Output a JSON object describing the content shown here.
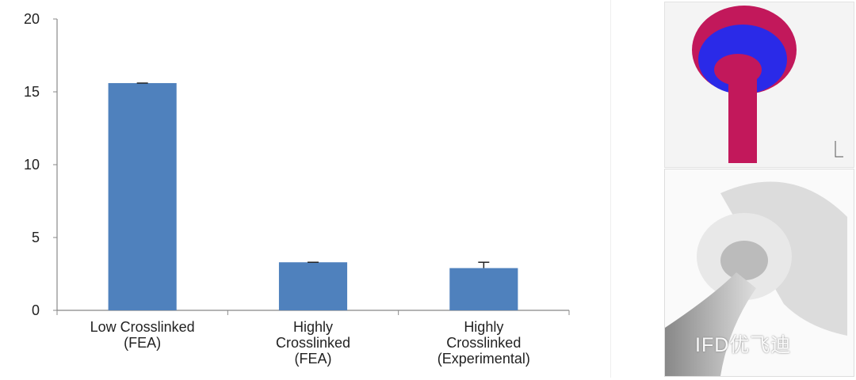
{
  "chart_data": {
    "type": "bar",
    "title": "",
    "xlabel": "",
    "ylabel": "",
    "ylim": [
      0,
      20
    ],
    "yticks": [
      0,
      5,
      10,
      15,
      20
    ],
    "categories": [
      [
        "Low Crosslinked",
        "(FEA)"
      ],
      [
        "Highly",
        "Crosslinked",
        "(FEA)"
      ],
      [
        "Highly",
        "Crosslinked",
        "(Experimental)"
      ]
    ],
    "values": [
      15.6,
      3.3,
      2.9
    ],
    "error_upper": [
      0.0,
      0.0,
      0.4
    ],
    "grid": false,
    "bar_color": "#4f81bd"
  },
  "images": {
    "fea_model": "FEA mesh model of implant",
    "implant_photo": "Implant photograph",
    "watermark": "IFD优飞迪"
  }
}
